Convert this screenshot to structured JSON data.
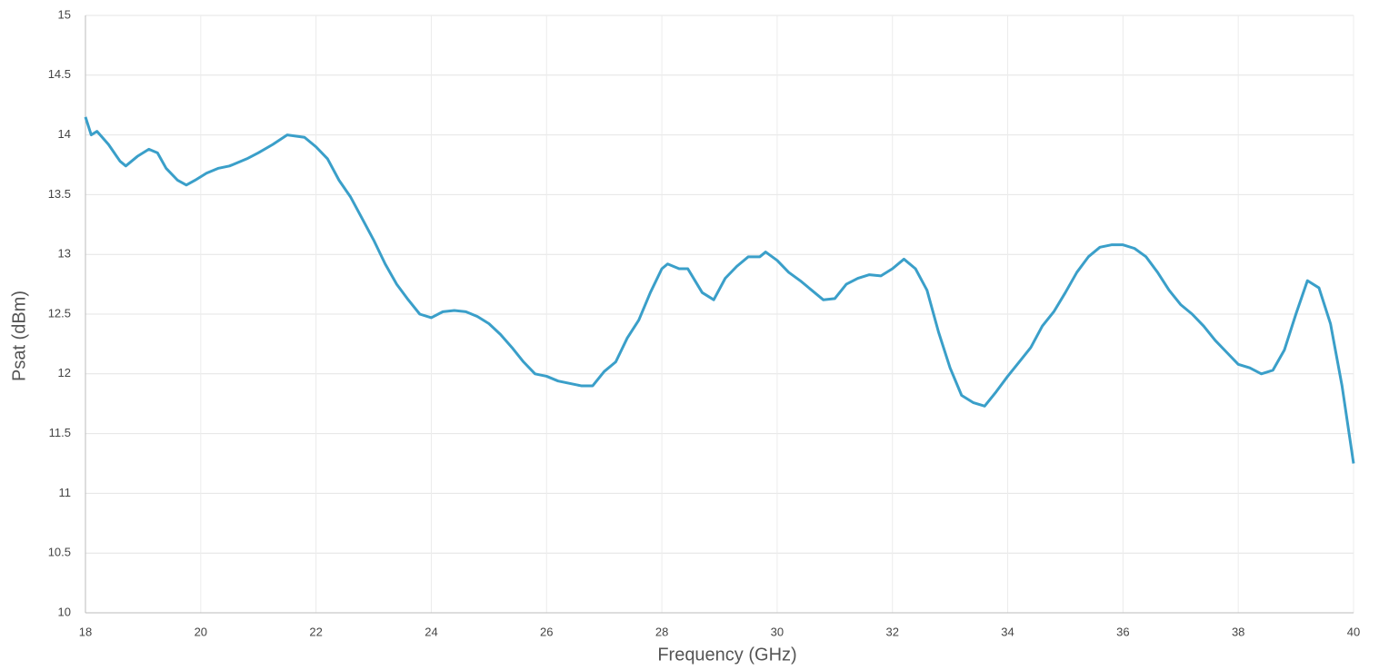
{
  "chart_data": {
    "type": "line",
    "x_label": "Frequency (GHz)",
    "y_label": "Psat (dBm)",
    "xlim": [
      18,
      40
    ],
    "xticks": [
      18,
      20,
      22,
      24,
      26,
      28,
      30,
      32,
      34,
      36,
      38,
      40
    ],
    "ylim": [
      10,
      15
    ],
    "yticks": [
      10,
      10.5,
      11,
      11.5,
      12,
      12.5,
      13,
      13.5,
      14,
      14.5,
      15
    ],
    "grid": true,
    "series": [
      {
        "color": "#3a9fc9",
        "x": [
          18.0,
          18.1,
          18.2,
          18.4,
          18.6,
          18.7,
          18.9,
          19.1,
          19.25,
          19.4,
          19.6,
          19.75,
          19.9,
          20.1,
          20.3,
          20.5,
          20.8,
          21.0,
          21.25,
          21.5,
          21.8,
          22.0,
          22.2,
          22.4,
          22.6,
          22.8,
          23.0,
          23.2,
          23.4,
          23.6,
          23.8,
          24.0,
          24.2,
          24.4,
          24.6,
          24.8,
          25.0,
          25.2,
          25.4,
          25.6,
          25.8,
          26.0,
          26.2,
          26.4,
          26.6,
          26.8,
          27.0,
          27.2,
          27.4,
          27.6,
          27.8,
          28.0,
          28.1,
          28.3,
          28.45,
          28.7,
          28.9,
          29.1,
          29.3,
          29.5,
          29.7,
          29.8,
          30.0,
          30.2,
          30.4,
          30.6,
          30.8,
          31.0,
          31.2,
          31.4,
          31.6,
          31.8,
          32.0,
          32.2,
          32.4,
          32.6,
          32.8,
          33.0,
          33.2,
          33.4,
          33.6,
          33.8,
          34.0,
          34.2,
          34.4,
          34.6,
          34.8,
          35.0,
          35.2,
          35.4,
          35.6,
          35.8,
          36.0,
          36.2,
          36.4,
          36.6,
          36.8,
          37.0,
          37.2,
          37.4,
          37.6,
          37.8,
          38.0,
          38.2,
          38.4,
          38.6,
          38.8,
          39.0,
          39.2,
          39.4,
          39.6,
          39.8,
          40.0
        ],
        "values": [
          14.15,
          14.0,
          14.03,
          13.92,
          13.78,
          13.74,
          13.82,
          13.88,
          13.85,
          13.72,
          13.62,
          13.58,
          13.62,
          13.68,
          13.72,
          13.74,
          13.8,
          13.85,
          13.92,
          14.0,
          13.98,
          13.9,
          13.8,
          13.62,
          13.48,
          13.3,
          13.12,
          12.92,
          12.75,
          12.62,
          12.5,
          12.47,
          12.52,
          12.53,
          12.52,
          12.48,
          12.42,
          12.33,
          12.22,
          12.1,
          12.0,
          11.98,
          11.94,
          11.92,
          11.9,
          11.9,
          12.02,
          12.1,
          12.3,
          12.45,
          12.68,
          12.88,
          12.92,
          12.88,
          12.88,
          12.68,
          12.62,
          12.8,
          12.9,
          12.98,
          12.98,
          13.02,
          12.95,
          12.85,
          12.78,
          12.7,
          12.62,
          12.63,
          12.75,
          12.8,
          12.83,
          12.82,
          12.88,
          12.96,
          12.88,
          12.7,
          12.35,
          12.05,
          11.82,
          11.76,
          11.73,
          11.85,
          11.98,
          12.1,
          12.22,
          12.4,
          12.52,
          12.68,
          12.85,
          12.98,
          13.06,
          13.08,
          13.08,
          13.05,
          12.98,
          12.85,
          12.7,
          12.58,
          12.5,
          12.4,
          12.28,
          12.18,
          12.08,
          12.05,
          12.0,
          12.03,
          12.2,
          12.5,
          12.78,
          12.72,
          12.42,
          11.9,
          11.25
        ]
      }
    ]
  }
}
